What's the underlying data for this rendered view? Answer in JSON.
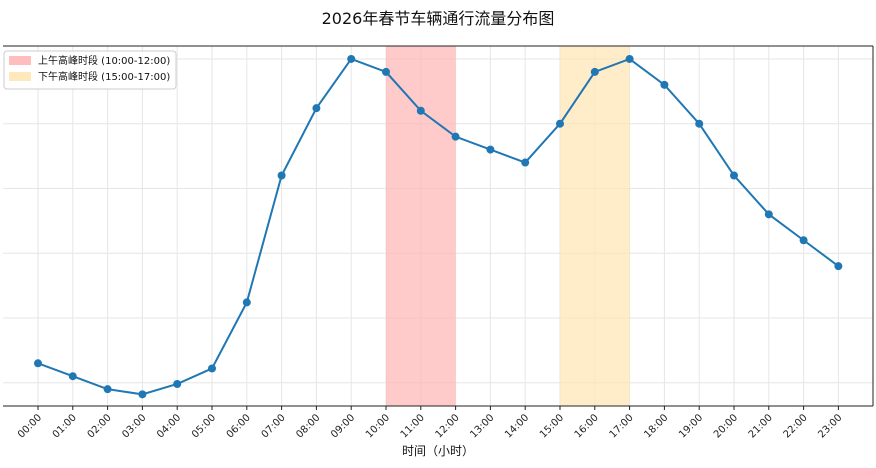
{
  "chart_data": {
    "type": "line",
    "title": "2026年春节车辆通行流量分布图",
    "xlabel": "时间（小时）",
    "ylabel": "",
    "categories": [
      "00:00",
      "01:00",
      "02:00",
      "03:00",
      "04:00",
      "05:00",
      "06:00",
      "07:00",
      "08:00",
      "09:00",
      "10:00",
      "11:00",
      "12:00",
      "13:00",
      "14:00",
      "15:00",
      "16:00",
      "17:00",
      "18:00",
      "19:00",
      "20:00",
      "21:00",
      "22:00",
      "23:00"
    ],
    "series": [
      {
        "values": [
          1650,
          1550,
          1450,
          1410,
          1490,
          1610,
          2120,
          3100,
          3620,
          4000,
          3900,
          3600,
          3400,
          3300,
          3200,
          3500,
          3900,
          4000,
          3800,
          3500,
          3100,
          2800,
          2600,
          2400
        ]
      }
    ],
    "ylim": [
      1320,
      4100
    ],
    "y_ticks_hidden": true,
    "grid": true,
    "legend_position": "top-left",
    "highlight_bands": [
      {
        "label": "上午高峰时段 (10:00-12:00)",
        "start": 10,
        "end": 12,
        "color": "#ffb3b3"
      },
      {
        "label": "下午高峰时段 (15:00-17:00)",
        "start": 15,
        "end": 17,
        "color": "#ffe4b0"
      }
    ],
    "line_color": "#1f77b4"
  }
}
